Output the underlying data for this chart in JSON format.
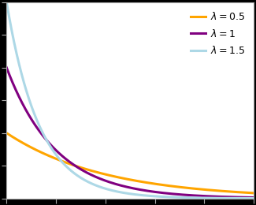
{
  "lambdas": [
    0.5,
    1,
    1.5
  ],
  "colors": [
    "#FFA500",
    "#800080",
    "#ADD8E6"
  ],
  "labels": [
    "\\lambda = 0.5",
    "\\lambda = 1",
    "\\lambda = 1.5"
  ],
  "x_min": 0,
  "x_max": 5,
  "y_min": 0,
  "y_max": 1.5,
  "line_width": 2.2,
  "legend_fontsize": 9,
  "plot_bg": "#ffffff",
  "fig_bg": "#000000",
  "spine_color": "#aaaaaa",
  "tick_color": "#aaaaaa",
  "legend_loc": "upper right",
  "figsize": [
    3.25,
    2.6
  ],
  "dpi": 100
}
